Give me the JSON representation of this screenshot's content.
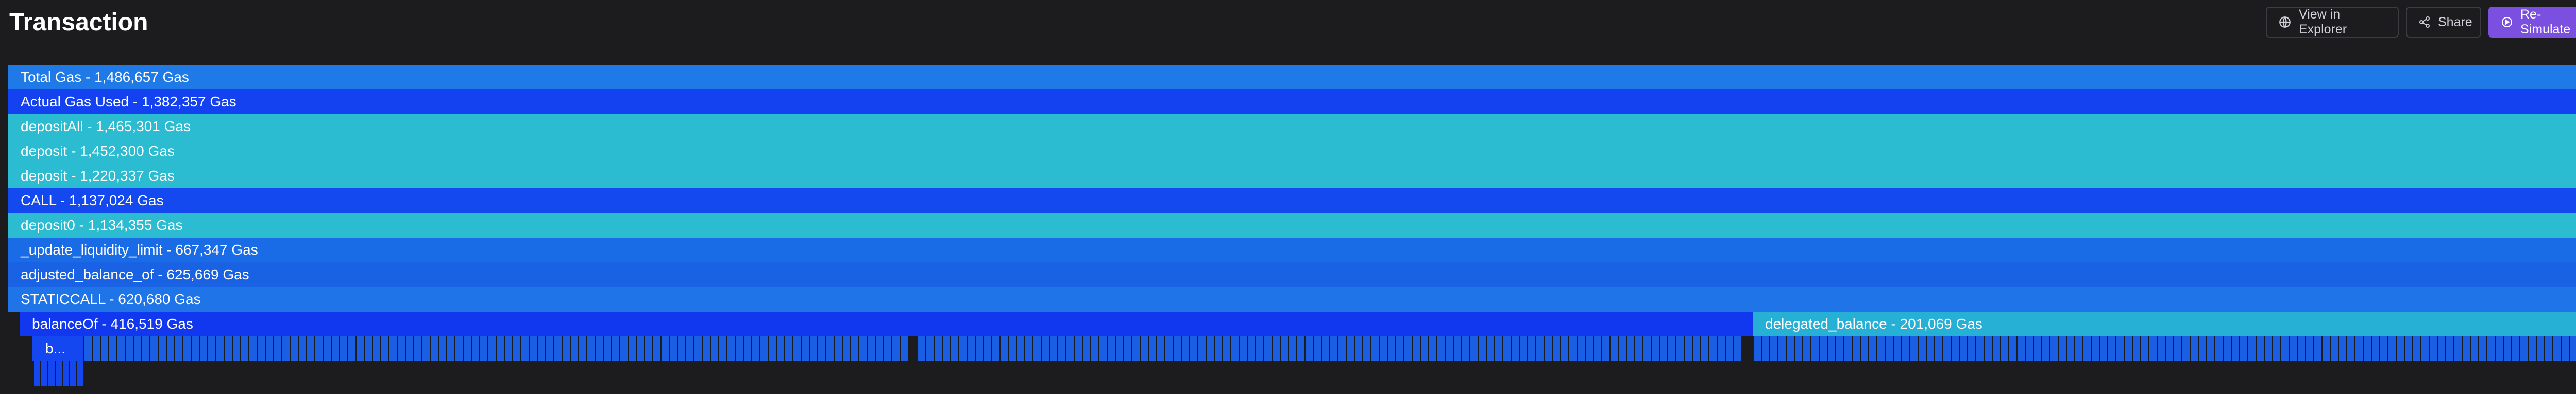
{
  "header": {
    "title": "Transaction",
    "view_explorer_label": "View in Explorer",
    "share_label": "Share",
    "resimulate_label": "Re-Simulate"
  },
  "colors": {
    "background": "#1c1c1f",
    "blue": "#1f7ae8",
    "deep_blue": "#1442f0",
    "cyan": "#2cbcd1",
    "mid_blue": "#1a5fe3",
    "accent": "#7b4fe0"
  },
  "flame_graph": {
    "rows": [
      {
        "label": "Total Gas - 1,486,657 Gas",
        "gas": 1486657,
        "color": "#1f7ae8"
      },
      {
        "label": "Actual Gas Used - 1,382,357 Gas",
        "gas": 1382357,
        "color": "#1442f0"
      },
      {
        "label": "depositAll - 1,465,301 Gas",
        "gas": 1465301,
        "color": "#2cbcd1"
      },
      {
        "label": "deposit - 1,452,300 Gas",
        "gas": 1452300,
        "color": "#2cbcd1"
      },
      {
        "label": "deposit - 1,220,337 Gas",
        "gas": 1220337,
        "color": "#2cbcd1"
      },
      {
        "label": "CALL - 1,137,024 Gas",
        "gas": 1137024,
        "color": "#1449ef"
      },
      {
        "label": "deposit0 - 1,134,355 Gas",
        "gas": 1134355,
        "color": "#2cbcd1"
      },
      {
        "label": "_update_liquidity_limit - 667,347 Gas",
        "gas": 667347,
        "color": "#1a6ce6"
      },
      {
        "label": "adjusted_balance_of - 625,669 Gas",
        "gas": 625669,
        "color": "#1a62e4"
      },
      {
        "label": "STATICCALL - 620,680 Gas",
        "gas": 620680,
        "color": "#1f74e8"
      }
    ],
    "split_row": [
      {
        "label": "balanceOf - 416,519 Gas",
        "gas": 416519,
        "color": "#1238ef"
      },
      {
        "label": "delegated_balance - 201,069 Gas",
        "gas": 201069,
        "color": "#27b0d6"
      }
    ],
    "small_call": {
      "label": "b...",
      "color": "#1447f0"
    },
    "tick_color": "#1a5fe3"
  }
}
